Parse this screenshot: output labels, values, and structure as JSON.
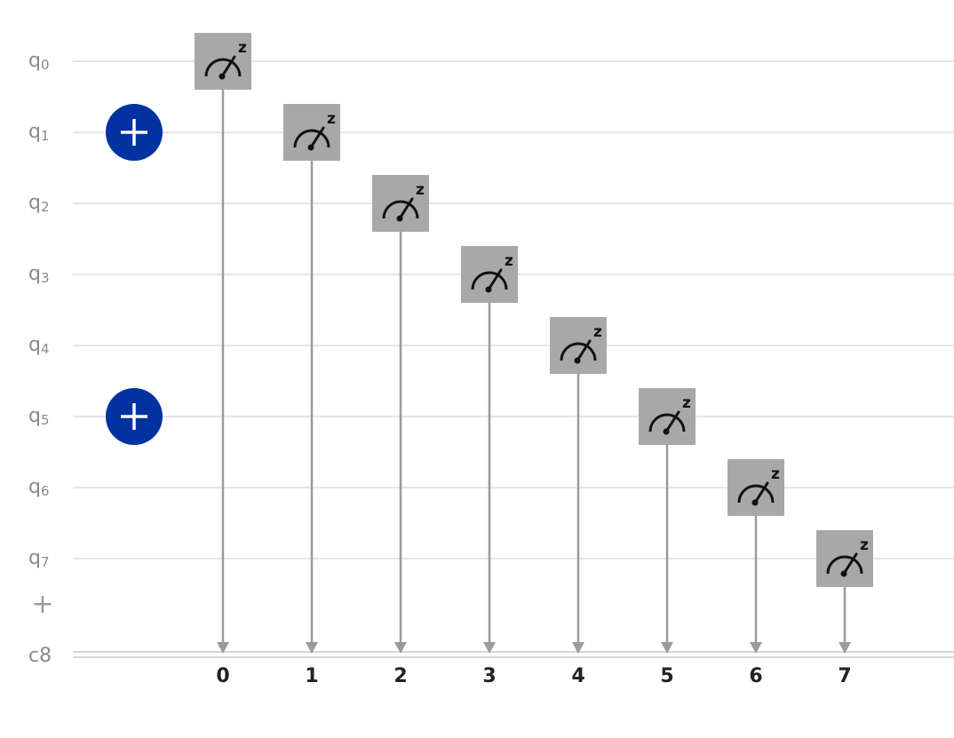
{
  "qubits": [
    {
      "label": "q",
      "index": "0"
    },
    {
      "label": "q",
      "index": "1"
    },
    {
      "label": "q",
      "index": "2"
    },
    {
      "label": "q",
      "index": "3"
    },
    {
      "label": "q",
      "index": "4"
    },
    {
      "label": "q",
      "index": "5"
    },
    {
      "label": "q",
      "index": "6"
    },
    {
      "label": "q",
      "index": "7"
    }
  ],
  "add_wire_label": "+",
  "classical_register": {
    "label": "c8",
    "bits": [
      "0",
      "1",
      "2",
      "3",
      "4",
      "5",
      "6",
      "7"
    ]
  },
  "x_gates": [
    {
      "qubit": 1,
      "column": 0
    },
    {
      "qubit": 5,
      "column": 0
    }
  ],
  "measurements": [
    {
      "qubit": 0,
      "column": 1,
      "basis": "z",
      "bit": 0
    },
    {
      "qubit": 1,
      "column": 2,
      "basis": "z",
      "bit": 1
    },
    {
      "qubit": 2,
      "column": 3,
      "basis": "z",
      "bit": 2
    },
    {
      "qubit": 3,
      "column": 4,
      "basis": "z",
      "bit": 3
    },
    {
      "qubit": 4,
      "column": 5,
      "basis": "z",
      "bit": 4
    },
    {
      "qubit": 5,
      "column": 6,
      "basis": "z",
      "bit": 5
    },
    {
      "qubit": 6,
      "column": 7,
      "basis": "z",
      "bit": 6
    },
    {
      "qubit": 7,
      "column": 8,
      "basis": "z",
      "bit": 7
    }
  ],
  "colors": {
    "wire": "#dddddd",
    "x_gate": "#0032a0",
    "measure_box": "#a8a8a8",
    "arrow": "#9b9b9b",
    "classical_wire": "#c8c8c8"
  }
}
